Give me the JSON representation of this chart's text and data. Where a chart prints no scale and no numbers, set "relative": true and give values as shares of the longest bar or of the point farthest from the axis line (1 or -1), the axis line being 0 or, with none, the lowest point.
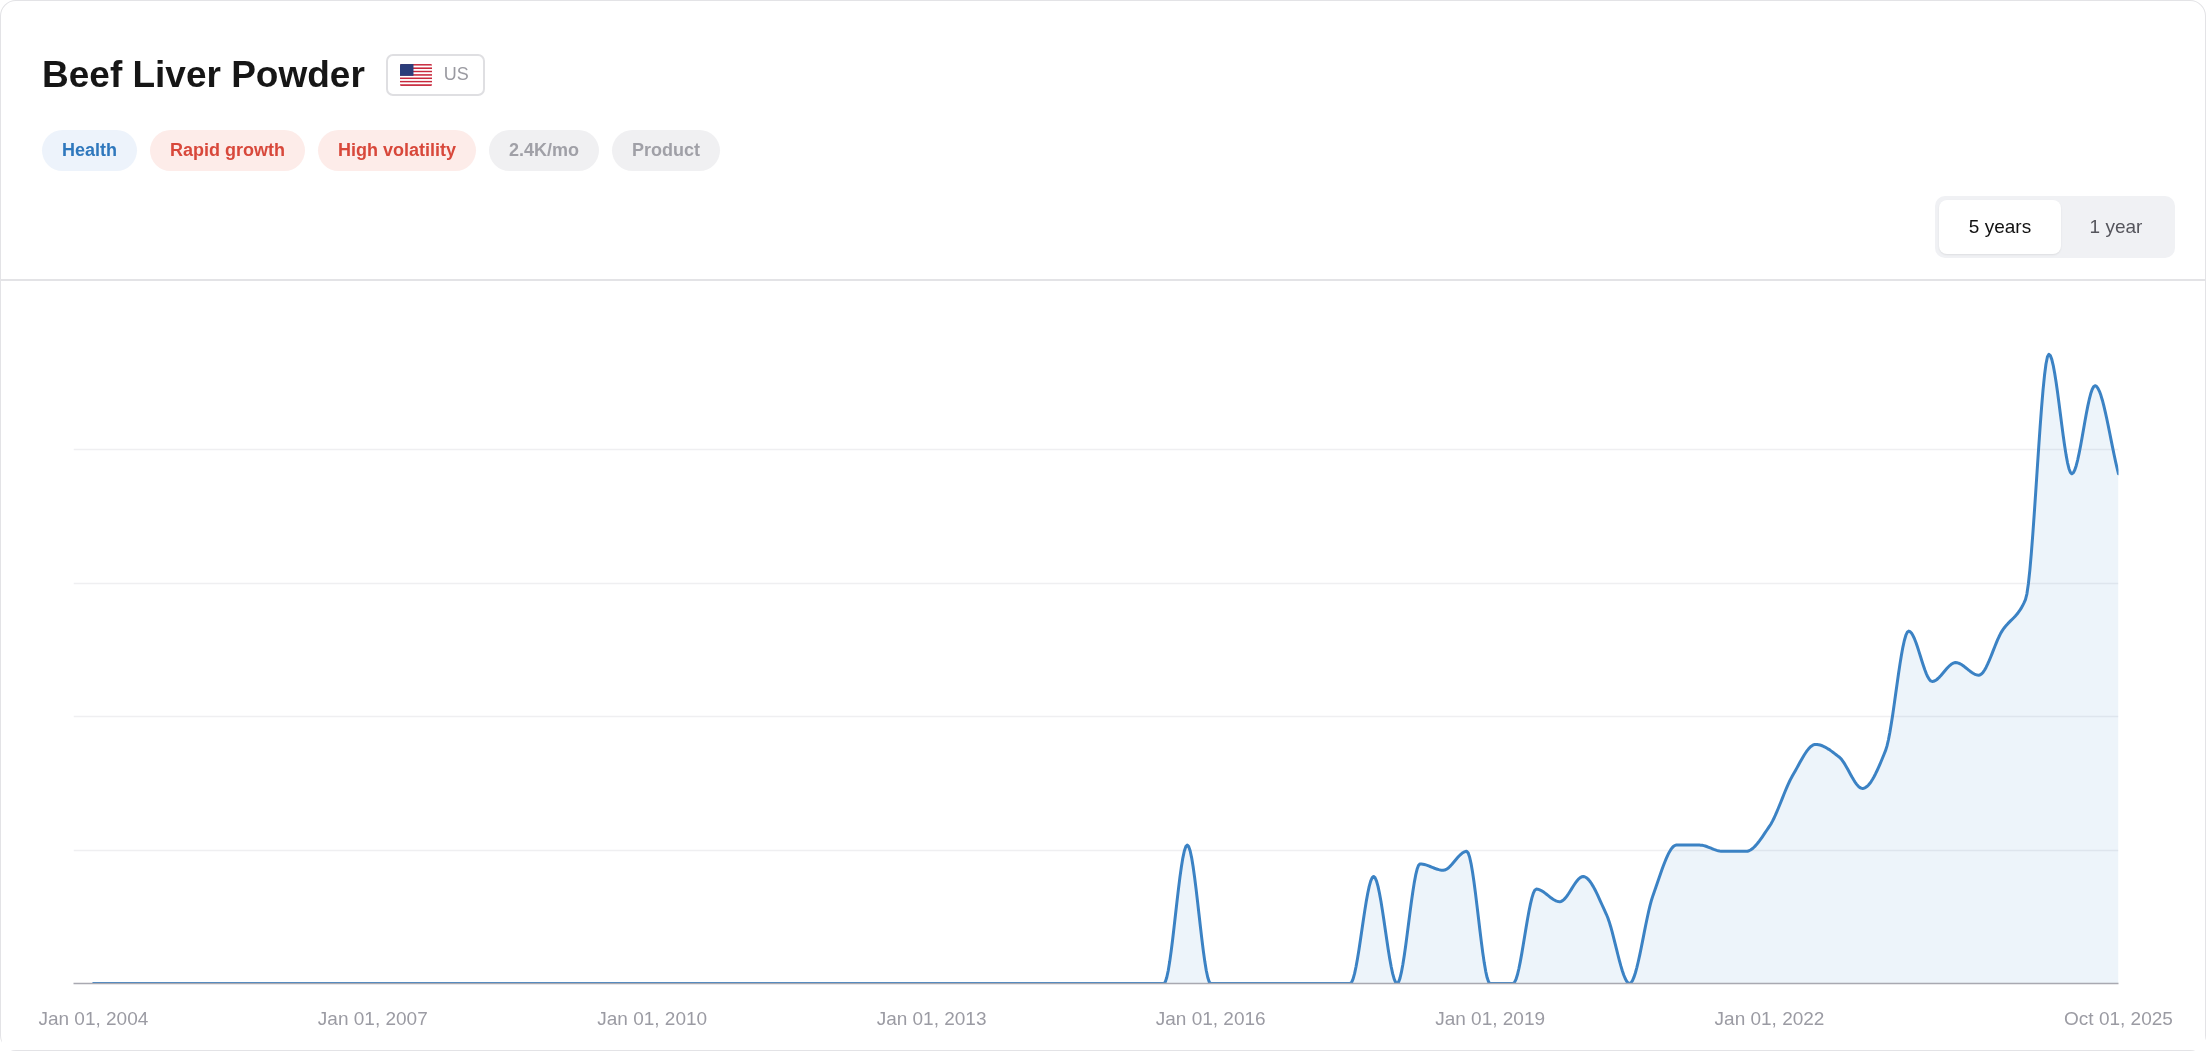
{
  "chart_data": {
    "type": "area",
    "title": "Beef Liver Powder",
    "annotations": [
      "US",
      "Health",
      "Rapid growth",
      "High volatility",
      "2.4K/mo",
      "Product",
      "5 years",
      "1 year"
    ],
    "relative": true,
    "grid": "y",
    "xlim": [
      "2003-10-15",
      "2025-10-01"
    ],
    "xticks": [
      {
        "value": "2004-01-01",
        "label": "Jan 01, 2004"
      },
      {
        "value": "2007-01-01",
        "label": "Jan 01, 2007"
      },
      {
        "value": "2010-01-01",
        "label": "Jan 01, 2010"
      },
      {
        "value": "2013-01-01",
        "label": "Jan 01, 2013"
      },
      {
        "value": "2016-01-01",
        "label": "Jan 01, 2016"
      },
      {
        "value": "2019-01-01",
        "label": "Jan 01, 2019"
      },
      {
        "value": "2022-01-01",
        "label": "Jan 01, 2022"
      },
      {
        "value": "2025-10-01",
        "label": "Oct 01, 2025"
      }
    ],
    "series": [
      {
        "color": "#3b82c4",
        "x": [
          "2004-01",
          "2015-07",
          "2015-10",
          "2016-01",
          "2017-07",
          "2017-10",
          "2018-01",
          "2018-04",
          "2018-07",
          "2018-10",
          "2019-01",
          "2019-04",
          "2019-07",
          "2019-10",
          "2020-01",
          "2020-04",
          "2020-07",
          "2020-10",
          "2021-01",
          "2021-04",
          "2021-07",
          "2021-10",
          "2022-01",
          "2022-04",
          "2022-07",
          "2022-10",
          "2023-01",
          "2023-04",
          "2023-07",
          "2023-10",
          "2024-01",
          "2024-04",
          "2024-07",
          "2024-10",
          "2025-01",
          "2025-04",
          "2025-07",
          "2025-10"
        ],
        "values": [
          0,
          0,
          0.22,
          0,
          0,
          0.17,
          0,
          0.19,
          0.18,
          0.21,
          0,
          0,
          0.15,
          0.13,
          0.17,
          0.11,
          0,
          0.14,
          0.22,
          0.22,
          0.21,
          0.21,
          0.25,
          0.33,
          0.38,
          0.36,
          0.31,
          0.37,
          0.56,
          0.48,
          0.51,
          0.49,
          0.56,
          0.61,
          1.0,
          0.81,
          0.95,
          0.81
        ]
      }
    ]
  }
}
